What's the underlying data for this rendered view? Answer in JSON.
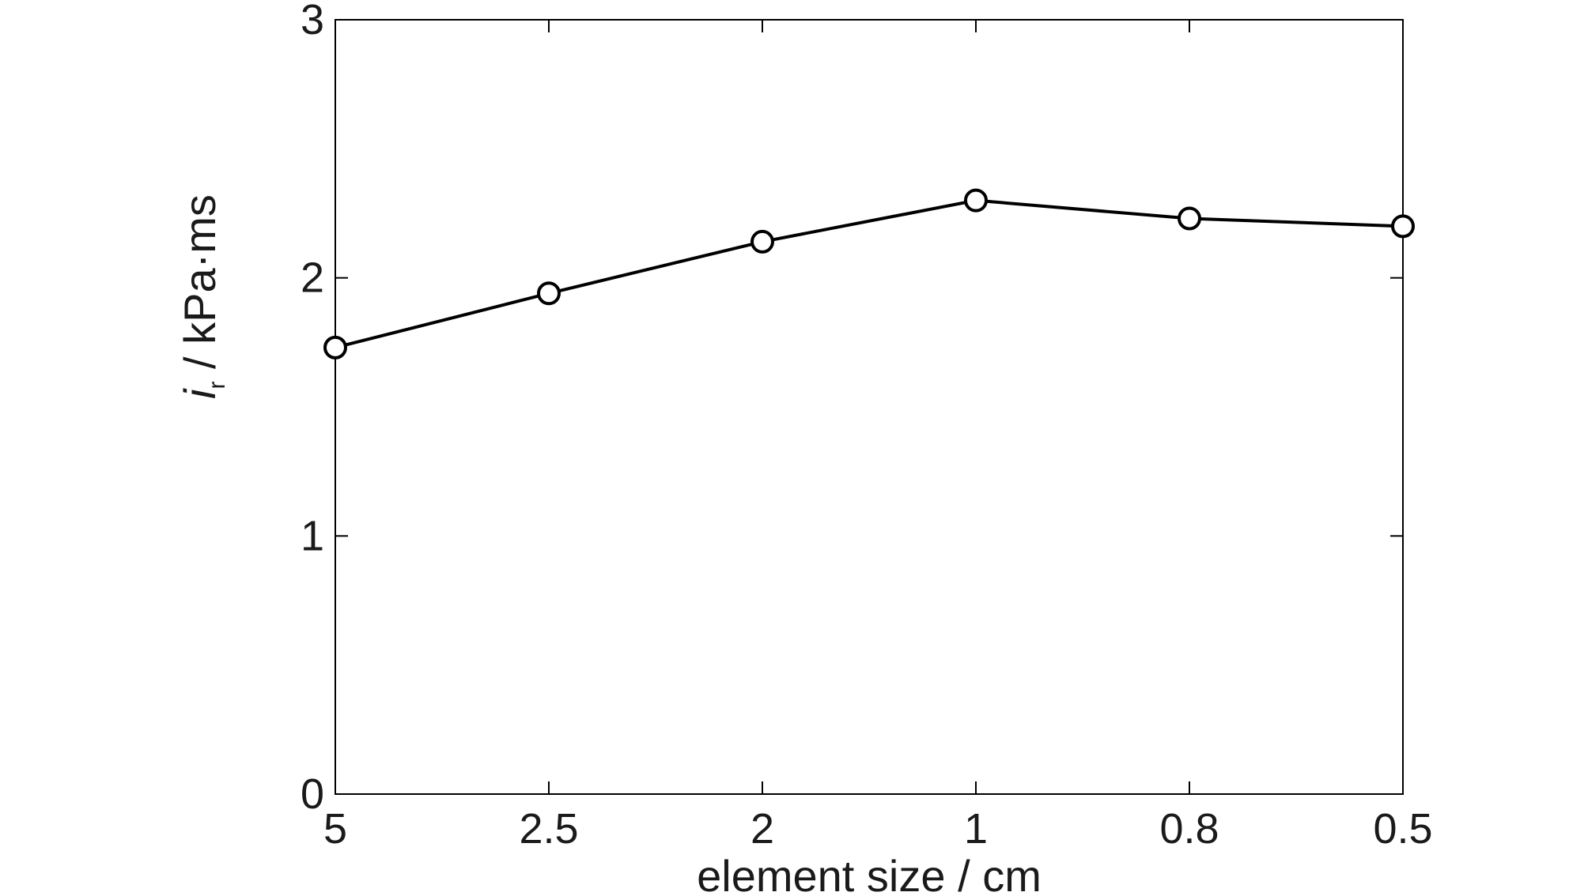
{
  "chart_data": {
    "type": "line",
    "categories": [
      "5",
      "2.5",
      "2",
      "1",
      "0.8",
      "0.5"
    ],
    "series": [
      {
        "values": [
          1.73,
          1.94,
          2.14,
          2.3,
          2.23,
          2.2
        ]
      }
    ],
    "yticks": [
      "0",
      "1",
      "2",
      "3"
    ],
    "ylim": [
      0,
      3
    ],
    "xlabel": "element size / cm",
    "ylabel": {
      "symbol": "i",
      "subscript": "r",
      "unit": " / kPa·ms"
    },
    "grid": false,
    "marker": "open-circle",
    "line_color": "#000000"
  }
}
